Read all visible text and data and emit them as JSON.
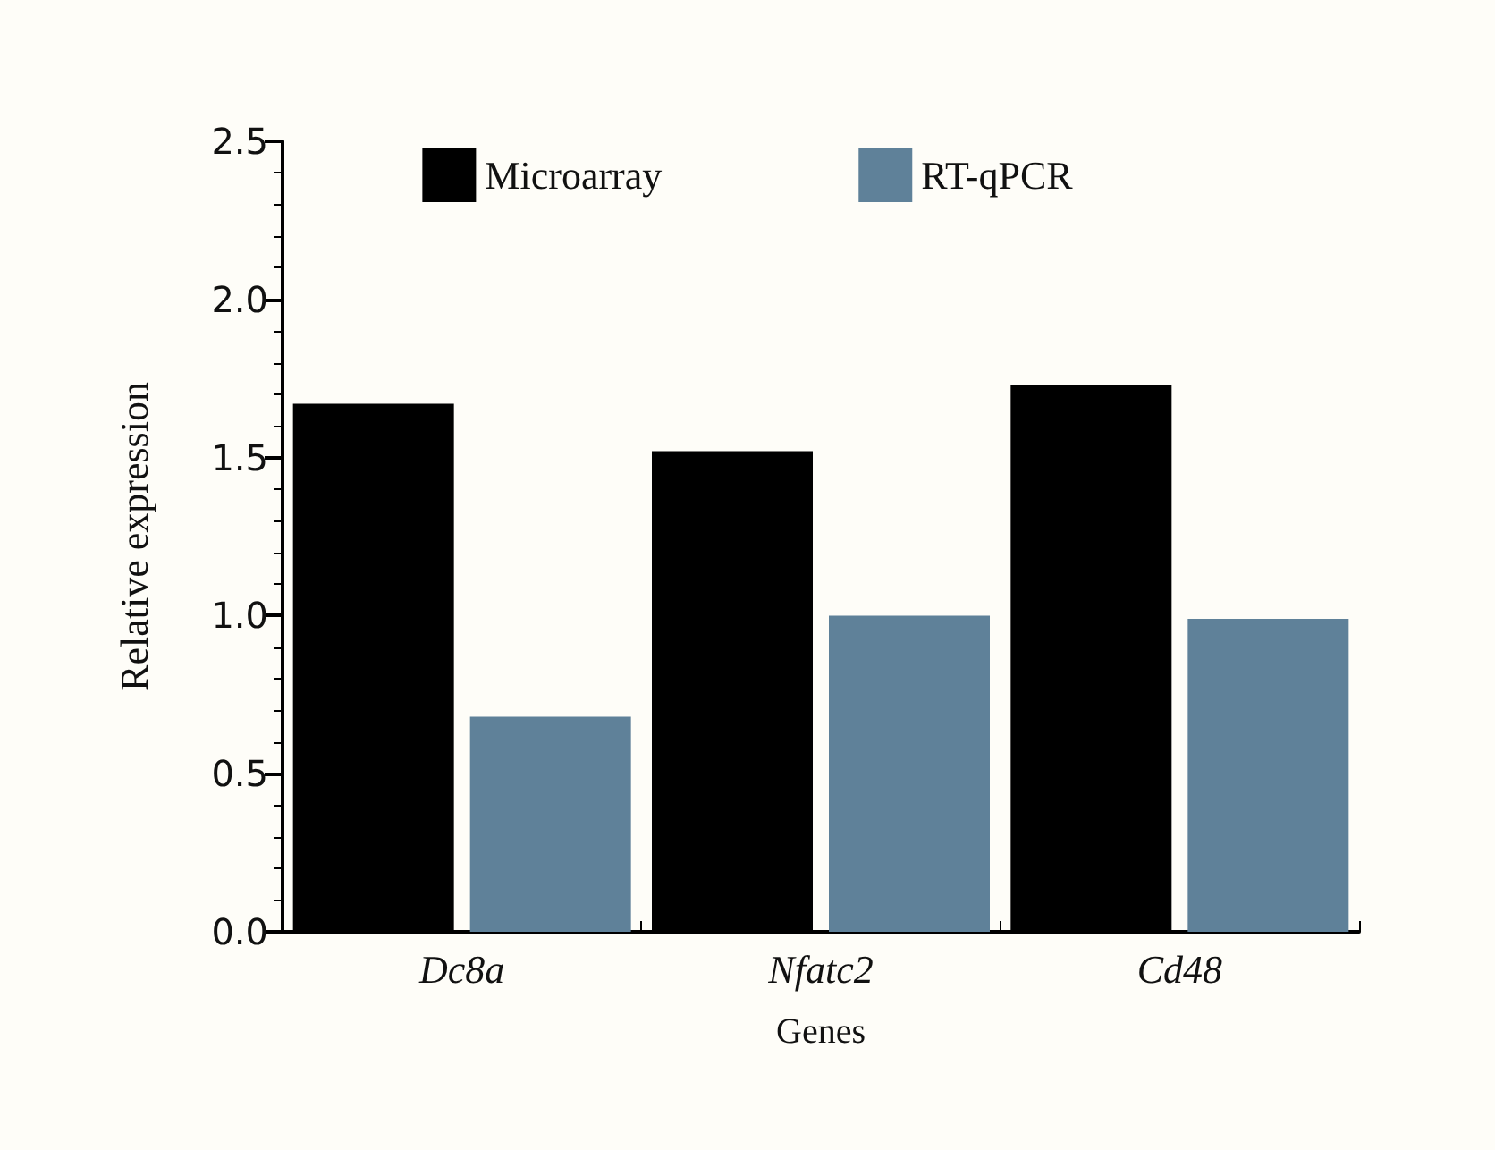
{
  "chart_data": {
    "type": "bar",
    "xlabel": "Genes",
    "ylabel": "Relative expression",
    "categories": [
      "Dc8a",
      "Nfatc2",
      "Cd48"
    ],
    "series": [
      {
        "name": "Microarray",
        "color": "#000000",
        "values": [
          1.67,
          1.52,
          1.73
        ]
      },
      {
        "name": "RT-qPCR",
        "color": "#5f8199",
        "values": [
          0.68,
          1.0,
          0.99
        ]
      }
    ],
    "ylim": [
      0,
      2.5
    ],
    "yticks": [
      {
        "value": 0,
        "label": "0.0"
      },
      0.5,
      {
        "value": 1,
        "label": "1.0"
      },
      1.5,
      {
        "value": 2,
        "label": "2.0"
      },
      2.5
    ],
    "grid": false,
    "legend": "top"
  }
}
